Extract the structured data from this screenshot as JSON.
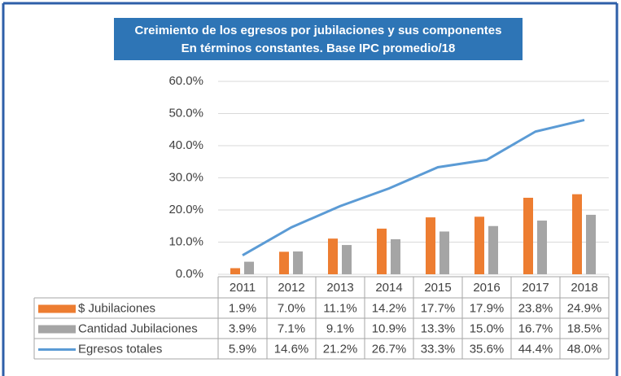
{
  "chart_data": {
    "type": "bar",
    "title": "Creimiento de los egresos por jubilaciones  y sus componentes",
    "subtitle": "En términos constantes. Base IPC promedio/18",
    "categories": [
      "2011",
      "2012",
      "2013",
      "2014",
      "2015",
      "2016",
      "2017",
      "2018"
    ],
    "series": [
      {
        "name": "$ Jubilaciones",
        "type": "bar",
        "color": "#ed7d31",
        "values": [
          1.9,
          7.0,
          11.1,
          14.2,
          17.7,
          17.9,
          23.8,
          24.9
        ],
        "value_labels": [
          "1.9%",
          "7.0%",
          "11.1%",
          "14.2%",
          "17.7%",
          "17.9%",
          "23.8%",
          "24.9%"
        ]
      },
      {
        "name": "Cantidad Jubilaciones",
        "type": "bar",
        "color": "#a5a5a5",
        "values": [
          3.9,
          7.1,
          9.1,
          10.9,
          13.3,
          15.0,
          16.7,
          18.5
        ],
        "value_labels": [
          "3.9%",
          "7.1%",
          "9.1%",
          "10.9%",
          "13.3%",
          "15.0%",
          "16.7%",
          "18.5%"
        ]
      },
      {
        "name": "Egresos totales",
        "type": "line",
        "color": "#5b9bd5",
        "values": [
          5.9,
          14.6,
          21.2,
          26.7,
          33.3,
          35.6,
          44.4,
          48.0
        ],
        "value_labels": [
          "5.9%",
          "14.6%",
          "21.2%",
          "26.7%",
          "33.3%",
          "35.6%",
          "44.4%",
          "48.0%"
        ]
      }
    ],
    "ylim": [
      0,
      60
    ],
    "yticks": [
      {
        "value": 0,
        "label": "0.0%"
      },
      {
        "value": 10,
        "label": "10.0%"
      },
      {
        "value": 20,
        "label": "20.0%"
      },
      {
        "value": 30,
        "label": "30.0%"
      },
      {
        "value": 40,
        "label": "40.0%"
      },
      {
        "value": 50,
        "label": "50.0%"
      },
      {
        "value": 60,
        "label": "60.0%"
      }
    ],
    "grid": true
  }
}
